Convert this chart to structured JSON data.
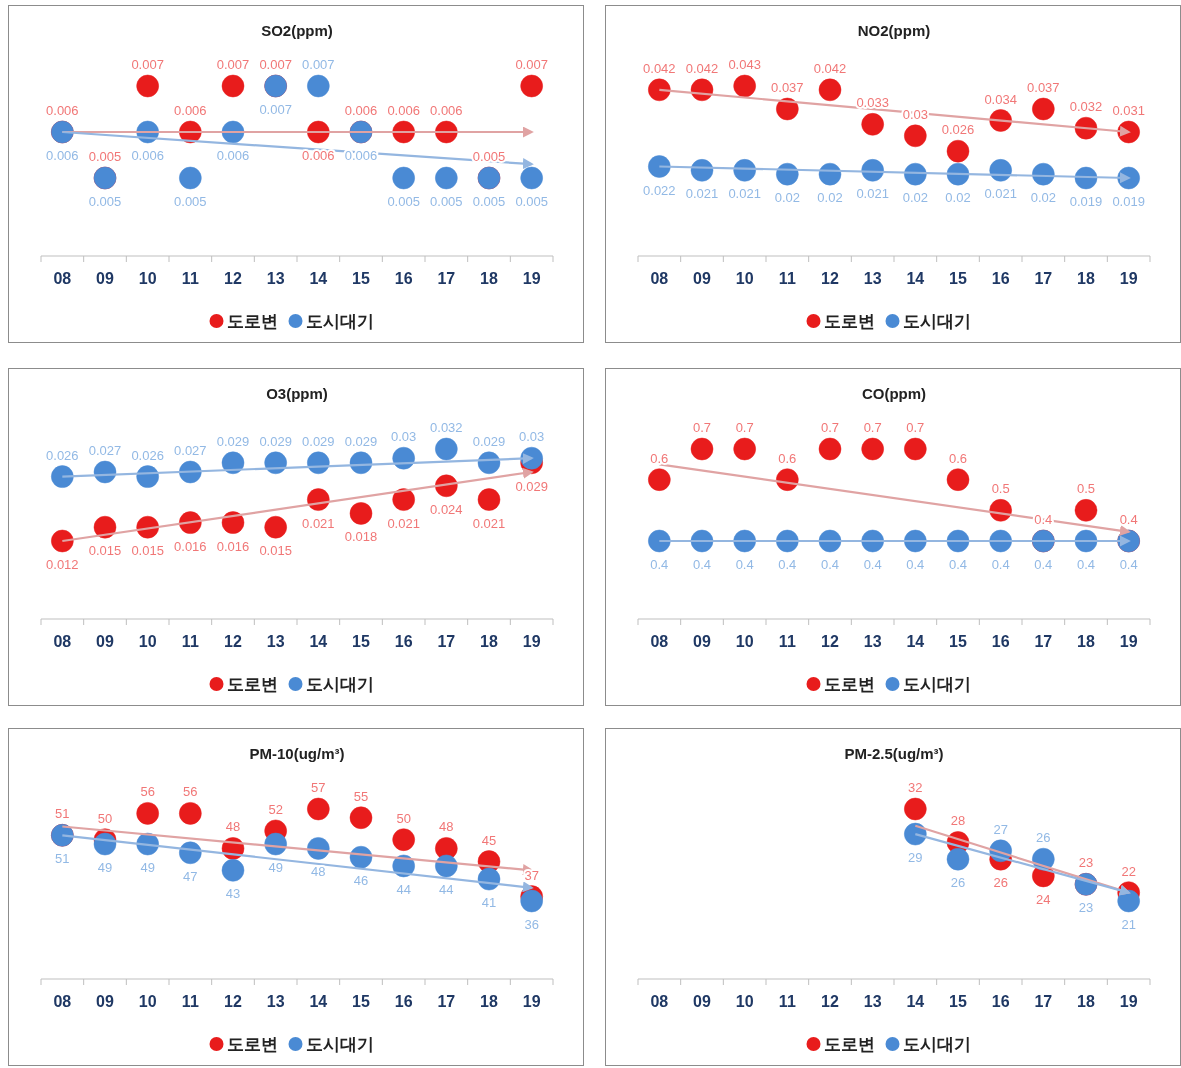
{
  "chart_data": [
    {
      "type": "scatter",
      "title": "SO2(ppm)",
      "categories": [
        "08",
        "09",
        "10",
        "11",
        "12",
        "13",
        "14",
        "15",
        "16",
        "17",
        "18",
        "19"
      ],
      "marker": "circle",
      "data_labels": true,
      "legend": "bottom",
      "series": [
        {
          "name": "도로변",
          "color": "#e81c1c",
          "values": [
            0.006,
            0.005,
            0.007,
            0.006,
            0.007,
            0.007,
            0.006,
            0.006,
            0.006,
            0.006,
            0.005,
            0.007
          ]
        },
        {
          "name": "도시대기",
          "color": "#4a8ad4",
          "values": [
            0.006,
            0.005,
            0.006,
            0.005,
            0.006,
            0.007,
            0.007,
            0.006,
            0.005,
            0.005,
            0.005,
            0.005
          ]
        },
        {
          "type": "line",
          "color": "#e0a3a3",
          "marker": "none",
          "data_labels": false,
          "values": [
            0.006,
            null,
            null,
            null,
            null,
            null,
            null,
            null,
            null,
            null,
            null,
            0.006
          ]
        },
        {
          "type": "line",
          "color": "#94b6e0",
          "marker": "none",
          "data_labels": false,
          "values": [
            0.006,
            null,
            null,
            null,
            null,
            null,
            null,
            null,
            null,
            null,
            null,
            0.0053
          ]
        }
      ]
    },
    {
      "type": "scatter",
      "title": "NO2(ppm)",
      "categories": [
        "08",
        "09",
        "10",
        "11",
        "12",
        "13",
        "14",
        "15",
        "16",
        "17",
        "18",
        "19"
      ],
      "marker": "circle",
      "data_labels": true,
      "legend": "bottom",
      "series": [
        {
          "name": "도로변",
          "color": "#e81c1c",
          "values": [
            0.042,
            0.042,
            0.043,
            0.037,
            0.042,
            0.033,
            0.03,
            0.026,
            0.034,
            0.037,
            0.032,
            0.031
          ]
        },
        {
          "name": "도시대기",
          "color": "#4a8ad4",
          "values": [
            0.022,
            0.021,
            0.021,
            0.02,
            0.02,
            0.021,
            0.02,
            0.02,
            0.021,
            0.02,
            0.019,
            0.019
          ]
        },
        {
          "type": "line",
          "color": "#e0a3a3",
          "marker": "none",
          "data_labels": false,
          "values": [
            0.042,
            null,
            null,
            null,
            null,
            null,
            null,
            null,
            null,
            null,
            null,
            0.031
          ]
        },
        {
          "type": "line",
          "color": "#94b6e0",
          "marker": "none",
          "data_labels": false,
          "values": [
            0.022,
            null,
            null,
            null,
            null,
            null,
            null,
            null,
            null,
            null,
            null,
            0.019
          ]
        }
      ]
    },
    {
      "type": "scatter",
      "title": "O3(ppm)",
      "categories": [
        "08",
        "09",
        "10",
        "11",
        "12",
        "13",
        "14",
        "15",
        "16",
        "17",
        "18",
        "19"
      ],
      "marker": "circle",
      "data_labels": true,
      "legend": "bottom",
      "series": [
        {
          "name": "도로변",
          "color": "#e81c1c",
          "values": [
            0.012,
            0.015,
            0.015,
            0.016,
            0.016,
            0.015,
            0.021,
            0.018,
            0.021,
            0.024,
            0.021,
            0.029
          ]
        },
        {
          "name": "도시대기",
          "color": "#4a8ad4",
          "values": [
            0.026,
            0.027,
            0.026,
            0.027,
            0.029,
            0.029,
            0.029,
            0.029,
            0.03,
            0.032,
            0.029,
            0.03
          ]
        },
        {
          "type": "line",
          "color": "#e0a3a3",
          "marker": "none",
          "data_labels": false,
          "values": [
            0.012,
            null,
            null,
            null,
            null,
            null,
            null,
            null,
            null,
            null,
            null,
            0.027
          ]
        },
        {
          "type": "line",
          "color": "#94b6e0",
          "marker": "none",
          "data_labels": false,
          "values": [
            0.026,
            null,
            null,
            null,
            null,
            null,
            null,
            null,
            null,
            null,
            null,
            0.03
          ]
        }
      ]
    },
    {
      "type": "scatter",
      "title": "CO(ppm)",
      "categories": [
        "08",
        "09",
        "10",
        "11",
        "12",
        "13",
        "14",
        "15",
        "16",
        "17",
        "18",
        "19"
      ],
      "marker": "circle",
      "data_labels": true,
      "legend": "bottom",
      "series": [
        {
          "name": "도로변",
          "color": "#e81c1c",
          "values": [
            0.6,
            0.7,
            0.7,
            0.6,
            0.7,
            0.7,
            0.7,
            0.6,
            0.5,
            0.4,
            0.5,
            0.4
          ]
        },
        {
          "name": "도시대기",
          "color": "#4a8ad4",
          "values": [
            0.4,
            0.4,
            0.4,
            0.4,
            0.4,
            0.4,
            0.4,
            0.4,
            0.4,
            0.4,
            0.4,
            0.4
          ]
        },
        {
          "type": "line",
          "color": "#e0a3a3",
          "marker": "none",
          "data_labels": false,
          "values": [
            0.65,
            null,
            null,
            null,
            null,
            null,
            null,
            null,
            null,
            null,
            null,
            0.43
          ]
        },
        {
          "type": "line",
          "color": "#94b6e0",
          "marker": "none",
          "data_labels": false,
          "values": [
            0.4,
            null,
            null,
            null,
            null,
            null,
            null,
            null,
            null,
            null,
            null,
            0.4
          ]
        }
      ]
    },
    {
      "type": "scatter",
      "title": "PM-10(ug/m³)",
      "categories": [
        "08",
        "09",
        "10",
        "11",
        "12",
        "13",
        "14",
        "15",
        "16",
        "17",
        "18",
        "19"
      ],
      "marker": "circle",
      "data_labels": true,
      "legend": "bottom",
      "series": [
        {
          "name": "도로변",
          "color": "#e81c1c",
          "values": [
            51,
            50,
            56,
            56,
            48,
            52,
            57,
            55,
            50,
            48,
            45,
            37
          ]
        },
        {
          "name": "도시대기",
          "color": "#4a8ad4",
          "values": [
            51,
            49,
            49,
            47,
            43,
            49,
            48,
            46,
            44,
            44,
            41,
            36
          ]
        },
        {
          "type": "line",
          "color": "#e0a3a3",
          "marker": "none",
          "data_labels": false,
          "values": [
            53,
            null,
            null,
            null,
            null,
            null,
            null,
            null,
            null,
            null,
            null,
            43
          ]
        },
        {
          "type": "line",
          "color": "#94b6e0",
          "marker": "none",
          "data_labels": false,
          "values": [
            51,
            null,
            null,
            null,
            null,
            null,
            null,
            null,
            null,
            null,
            null,
            39
          ]
        }
      ]
    },
    {
      "type": "scatter",
      "title": "PM-2.5(ug/m³)",
      "categories": [
        "08",
        "09",
        "10",
        "11",
        "12",
        "13",
        "14",
        "15",
        "16",
        "17",
        "18",
        "19"
      ],
      "marker": "circle",
      "data_labels": true,
      "legend": "bottom",
      "series": [
        {
          "name": "도로변",
          "color": "#e81c1c",
          "values": [
            null,
            null,
            null,
            null,
            null,
            null,
            32,
            28,
            26,
            24,
            23,
            22
          ]
        },
        {
          "name": "도시대기",
          "color": "#4a8ad4",
          "values": [
            null,
            null,
            null,
            null,
            null,
            null,
            29,
            26,
            27,
            26,
            23,
            21
          ]
        },
        {
          "type": "line",
          "color": "#e0a3a3",
          "marker": "none",
          "data_labels": false,
          "values": [
            null,
            null,
            null,
            null,
            null,
            null,
            30,
            null,
            null,
            null,
            null,
            22
          ]
        },
        {
          "type": "line",
          "color": "#94b6e0",
          "marker": "none",
          "data_labels": false,
          "values": [
            null,
            null,
            null,
            null,
            null,
            null,
            29,
            null,
            null,
            null,
            null,
            22
          ]
        }
      ]
    }
  ]
}
